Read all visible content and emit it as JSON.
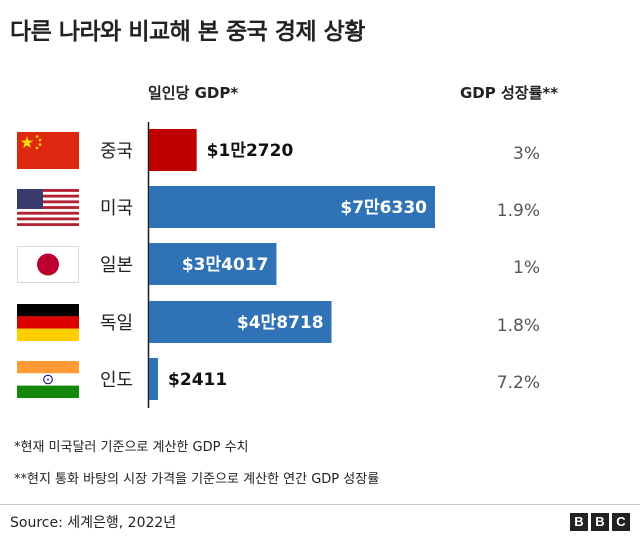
{
  "title": "다른 나라와 비교해 본 중국 경제 상황",
  "headers": {
    "gdp_per_capita": "일인당 GDP*",
    "gdp_growth": "GDP 성장률**"
  },
  "countries": [
    {
      "name": "중국",
      "flag": "china-flag",
      "gdp_label": "$1만2720",
      "growth": "3%"
    },
    {
      "name": "미국",
      "flag": "usa-flag",
      "gdp_label": "$7만6330",
      "growth": "1.9%"
    },
    {
      "name": "일본",
      "flag": "japan-flag",
      "gdp_label": "$3만4017",
      "growth": "1%"
    },
    {
      "name": "독일",
      "flag": "germany-flag",
      "gdp_label": "$4만8718",
      "growth": "1.8%"
    },
    {
      "name": "인도",
      "flag": "india-flag",
      "gdp_label": "$2411",
      "growth": "7.2%"
    }
  ],
  "chart_data": {
    "type": "bar",
    "orientation": "horizontal",
    "title": "다른 나라와 비교해 본 중국 경제 상황",
    "categories": [
      "중국",
      "미국",
      "일본",
      "독일",
      "인도"
    ],
    "values": [
      12720,
      76330,
      34017,
      48718,
      2411
    ],
    "value_labels": [
      "$1만2720",
      "$7만6330",
      "$3만4017",
      "$4만8718",
      "$2411"
    ],
    "bar_colors": [
      "#c00000",
      "#2f73b6",
      "#2f73b6",
      "#2f73b6",
      "#2f73b6"
    ],
    "xlim": [
      0,
      76330
    ],
    "grid": false,
    "secondary_column": {
      "header": "GDP 성장률**",
      "values": [
        "3%",
        "1.9%",
        "1%",
        "1.8%",
        "7.2%"
      ]
    }
  },
  "footnotes": {
    "note1": "*현재 미국달러 기준으로 계산한 GDP 수치",
    "note2": "**현지 통화 바탕의 시장 가격을 기준으로 계산한 연간 GDP 성장률"
  },
  "source": "Source: 세계은행, 2022년",
  "logo": {
    "letters": [
      "B",
      "B",
      "C"
    ]
  },
  "colors": {
    "china_bar": "#c00000",
    "other_bar": "#2f73b6"
  }
}
